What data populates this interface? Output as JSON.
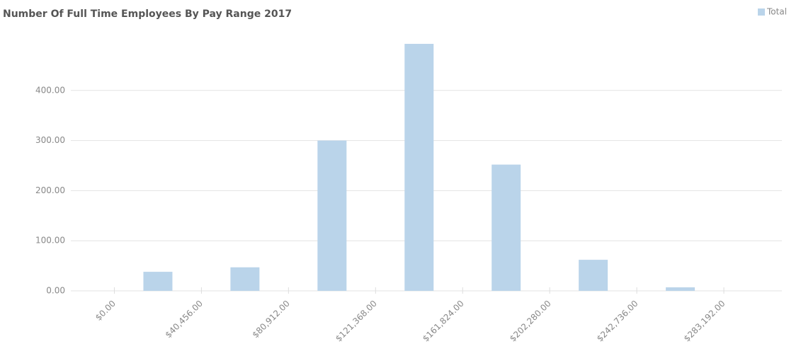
{
  "chart_data": {
    "type": "histogram",
    "title": "Number Of Full Time Employees By Pay Range 2017",
    "bins": [
      0,
      40456,
      80912,
      121368,
      161824,
      202280,
      242736,
      283192
    ],
    "series": [
      {
        "name": "Total",
        "color": "#bad4ea",
        "values": [
          38,
          47,
          300,
          493,
          252,
          62,
          7
        ]
      }
    ],
    "xlim": [
      -20228,
      310160
    ],
    "ylim": [
      0,
      500
    ],
    "xticks": [
      {
        "value": 0,
        "label": "$0.00"
      },
      {
        "value": 40456,
        "label": "$40,456.00"
      },
      {
        "value": 80912,
        "label": "$80,912.00"
      },
      {
        "value": 121368,
        "label": "$121,368.00"
      },
      {
        "value": 161824,
        "label": "$161,824.00"
      },
      {
        "value": 202280,
        "label": "$202,280.00"
      },
      {
        "value": 242736,
        "label": "$242,736.00"
      },
      {
        "value": 283192,
        "label": "$283,192.00"
      }
    ],
    "yticks": [
      {
        "value": 0,
        "label": "0.00"
      },
      {
        "value": 100,
        "label": "100.00"
      },
      {
        "value": 200,
        "label": "200.00"
      },
      {
        "value": 300,
        "label": "300.00"
      },
      {
        "value": 400,
        "label": "400.00"
      }
    ],
    "grid": true,
    "legend": "top-right"
  }
}
